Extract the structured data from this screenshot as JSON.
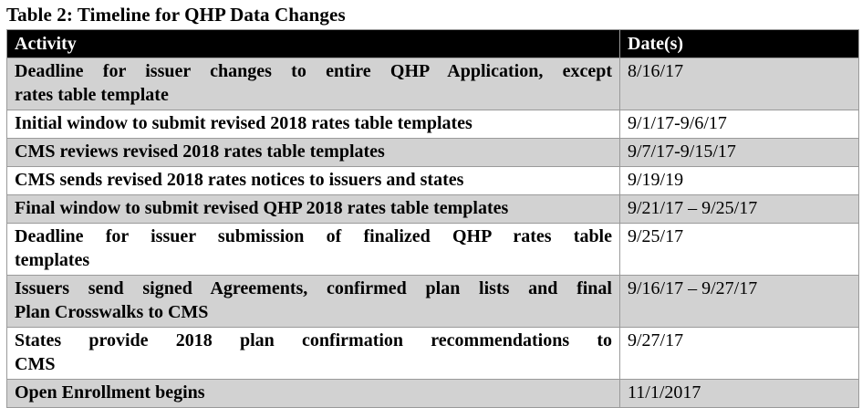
{
  "title": "Table 2: Timeline for QHP Data Changes",
  "table": {
    "header": {
      "activity": "Activity",
      "dates": "Date(s)"
    },
    "rows": [
      {
        "activity": "Deadline for issuer changes to entire QHP Application, except rates table template",
        "activity_lines": [
          "Deadline for issuer changes to entire QHP Application, except",
          "rates table template"
        ],
        "date": "8/16/17"
      },
      {
        "activity": "Initial window to submit revised 2018 rates table templates",
        "activity_lines": [
          "Initial window to submit revised 2018 rates table templates"
        ],
        "date": "9/1/17-9/6/17"
      },
      {
        "activity": "CMS reviews revised 2018 rates table templates",
        "activity_lines": [
          "CMS reviews revised 2018 rates table templates"
        ],
        "date": "9/7/17-9/15/17"
      },
      {
        "activity": "CMS sends revised 2018 rates notices to issuers and states",
        "activity_lines": [
          "CMS sends revised 2018 rates notices to issuers and states"
        ],
        "date": "9/19/19"
      },
      {
        "activity": "Final window to submit revised QHP 2018 rates table templates",
        "activity_lines": [
          "Final window to submit revised QHP 2018 rates table templates"
        ],
        "date": "9/21/17 – 9/25/17"
      },
      {
        "activity": "Deadline for issuer submission of finalized QHP rates table templates",
        "activity_lines": [
          "Deadline for issuer submission of finalized QHP rates table",
          "templates"
        ],
        "date": "9/25/17"
      },
      {
        "activity": "Issuers send signed Agreements, confirmed plan lists and final Plan Crosswalks to CMS",
        "activity_lines": [
          "Issuers send signed Agreements, confirmed plan lists and final",
          "Plan Crosswalks to CMS"
        ],
        "date": "9/16/17 – 9/27/17"
      },
      {
        "activity": "States provide 2018 plan confirmation recommendations to CMS",
        "activity_lines": [
          "States provide 2018 plan confirmation recommendations to",
          "CMS"
        ],
        "date": "9/27/17"
      },
      {
        "activity": "Open Enrollment begins",
        "activity_lines": [
          "Open Enrollment begins"
        ],
        "date": "11/1/2017"
      }
    ]
  },
  "colors": {
    "header_bg": "#000000",
    "header_text": "#ffffff",
    "shaded_row_bg": "#d2d2d2",
    "border": "#9a9a9a",
    "text": "#000000"
  }
}
